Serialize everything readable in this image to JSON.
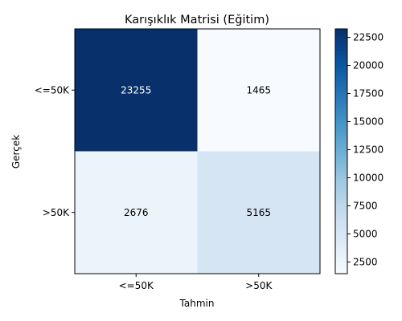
{
  "chart_data": {
    "type": "heatmap",
    "title": "Karışıklık Matrisi (Eğitim)",
    "xlabel": "Tahmin",
    "ylabel": "Gerçek",
    "x_categories": [
      "<=50K",
      ">50K"
    ],
    "y_categories": [
      "<=50K",
      ">50K"
    ],
    "values": [
      [
        23255,
        1465
      ],
      [
        2676,
        5165
      ]
    ],
    "colormap": "Blues",
    "colorbar": {
      "min": 1465,
      "max": 23255,
      "ticks": [
        "2500",
        "5000",
        "7500",
        "10000",
        "12500",
        "15000",
        "17500",
        "20000",
        "22500"
      ]
    }
  }
}
